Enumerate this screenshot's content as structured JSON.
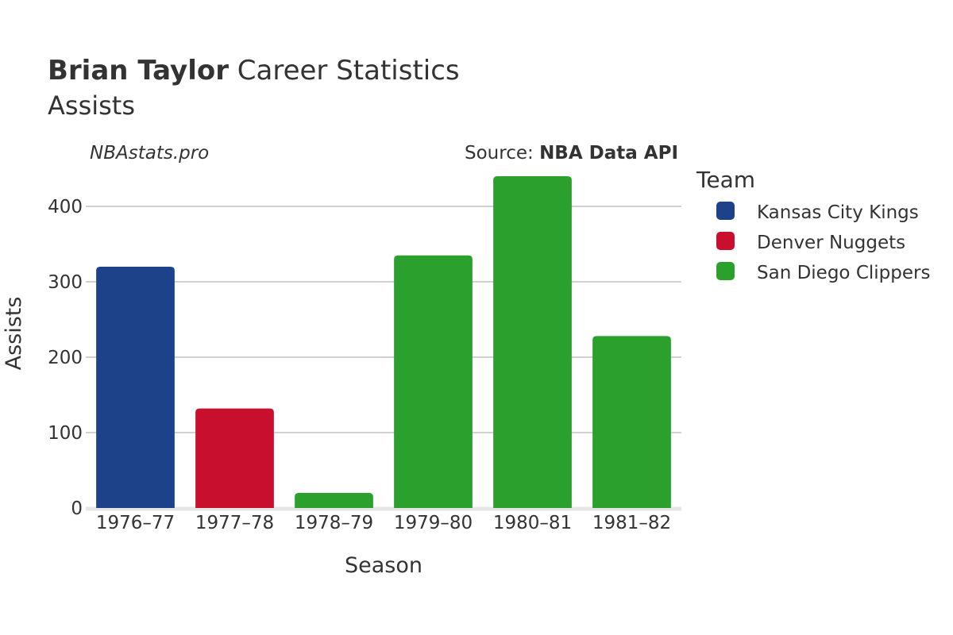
{
  "header": {
    "title_name": "Brian Taylor",
    "title_rest": " Career Statistics",
    "subtitle": "Assists",
    "watermark": "NBAstats.pro",
    "source_prefix": "Source: ",
    "source_name": "NBA Data API"
  },
  "legend": {
    "title": "Team",
    "items": [
      {
        "label": "Kansas City Kings",
        "color": "#1d428a"
      },
      {
        "label": "Denver Nuggets",
        "color": "#c8102e"
      },
      {
        "label": "San Diego Clippers",
        "color": "#2ca02c"
      }
    ]
  },
  "chart_data": {
    "type": "bar",
    "title": "Brian Taylor Career Statistics",
    "subtitle": "Assists",
    "xlabel": "Season",
    "ylabel": "Assists",
    "ylim": [
      0,
      440
    ],
    "yticks": [
      0,
      100,
      200,
      300,
      400
    ],
    "grid": true,
    "legend_position": "right",
    "categories": [
      "1976–77",
      "1977–78",
      "1978–79",
      "1979–80",
      "1980–81",
      "1981–82"
    ],
    "values": [
      320,
      132,
      20,
      335,
      440,
      228
    ],
    "teams": [
      "Kansas City Kings",
      "Denver Nuggets",
      "San Diego Clippers",
      "San Diego Clippers",
      "San Diego Clippers",
      "San Diego Clippers"
    ]
  }
}
